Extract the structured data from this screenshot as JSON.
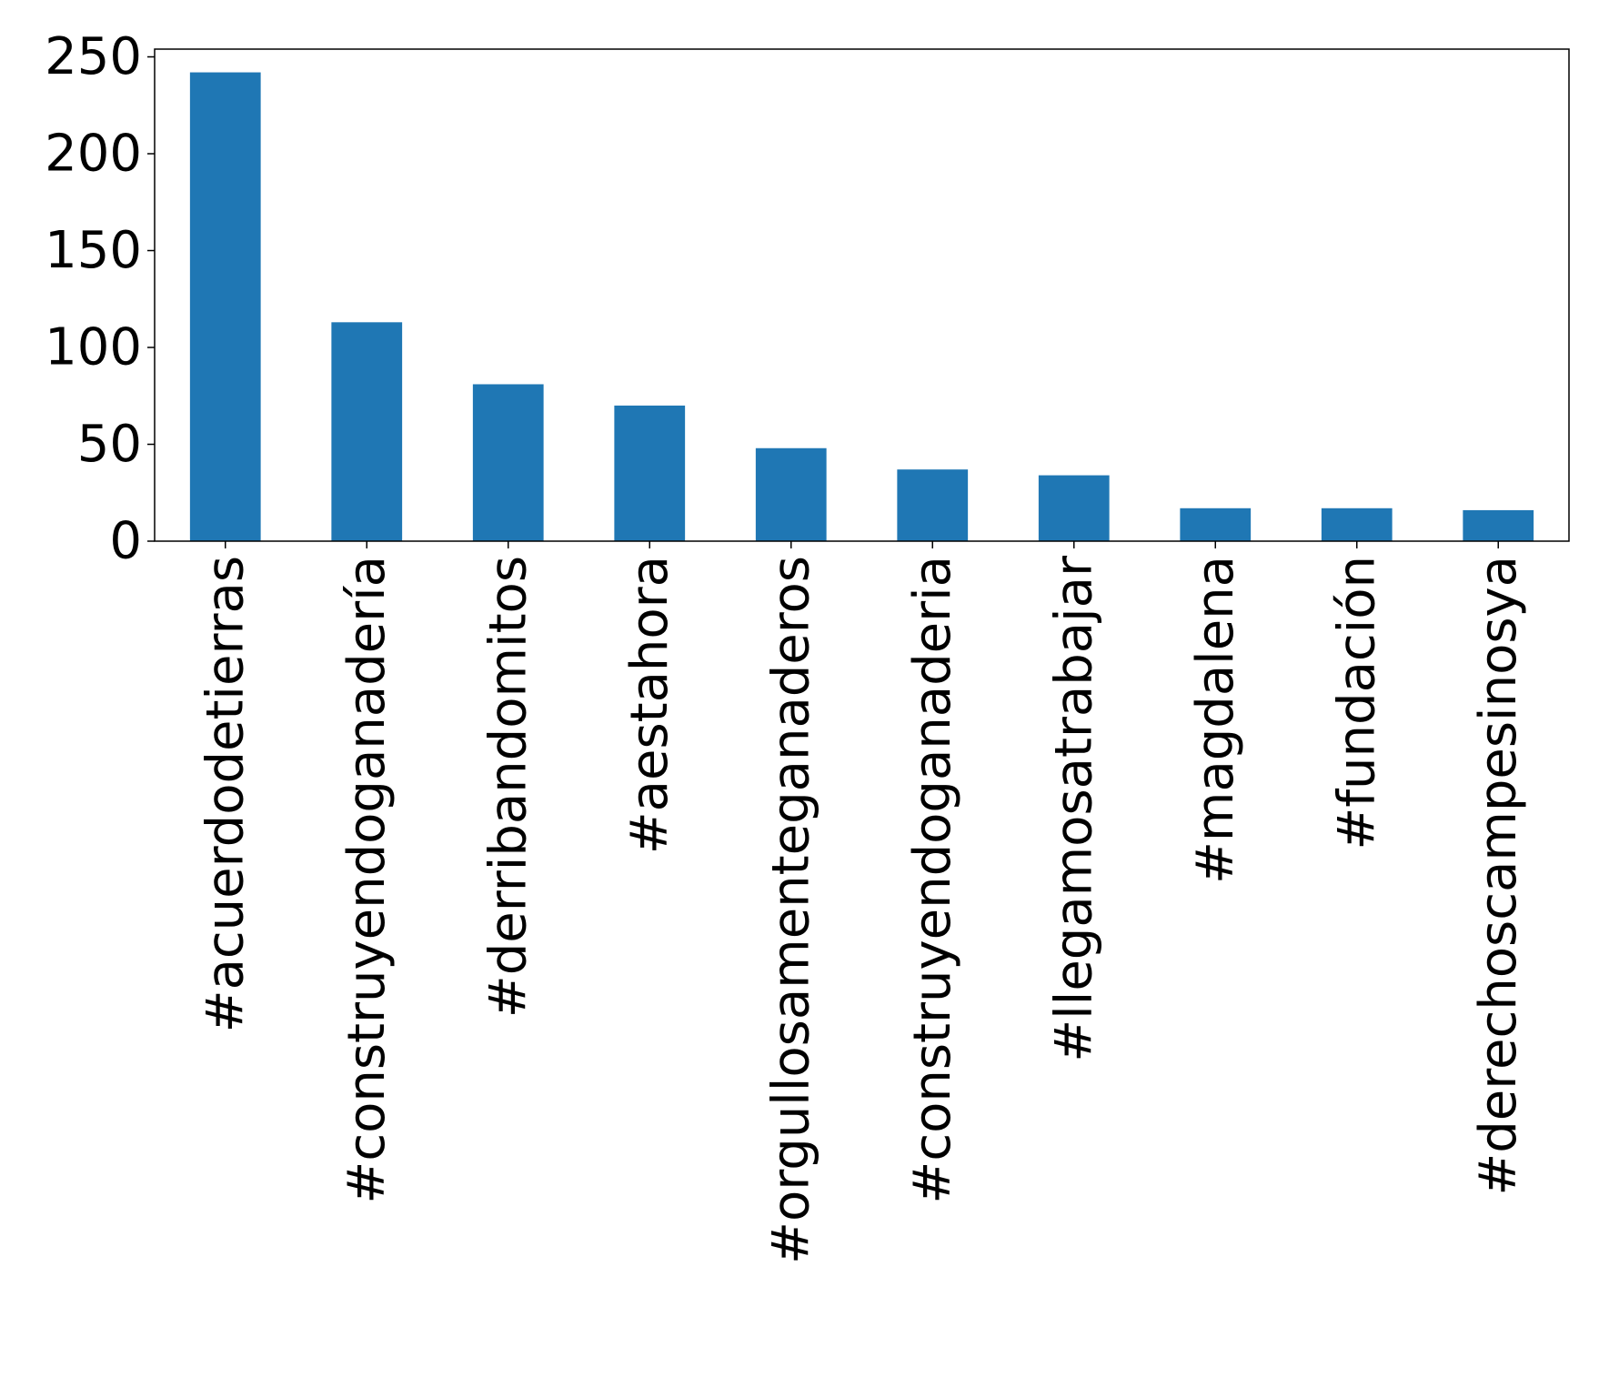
{
  "chart_data": {
    "type": "bar",
    "title": "",
    "xlabel": "",
    "ylabel": "",
    "categories": [
      "#acuerdodetierras",
      "#construyendoganadería",
      "#derribandomitos",
      "#aestahora",
      "#orgullosamenteganaderos",
      "#construyendoganaderia",
      "#llegamosatrabajar",
      "#magdalena",
      "#fundación",
      "#derechoscampesinosya"
    ],
    "values": [
      242,
      113,
      81,
      70,
      48,
      37,
      34,
      17,
      17,
      16
    ],
    "ylim": [
      0,
      254
    ],
    "yticks": [
      0,
      50,
      100,
      150,
      200,
      250
    ],
    "grid": false,
    "legend": "none",
    "bar_color": "#1f77b4"
  }
}
